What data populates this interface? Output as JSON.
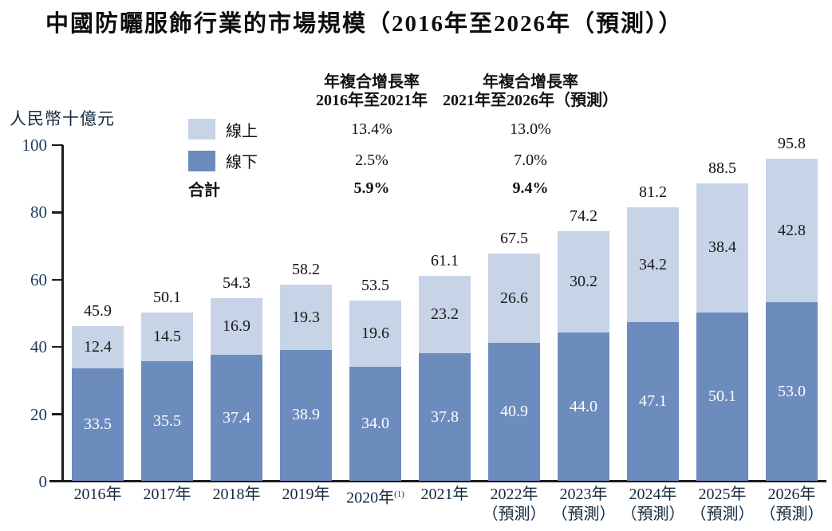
{
  "title": "中國防曬服飾行業的市場規模（2016年至2026年（預測））",
  "chart_data": {
    "type": "bar",
    "subtype": "stacked",
    "unit_label": "人民幣十億元",
    "y_axis": {
      "min": 0,
      "max": 100,
      "ticks": [
        0,
        20,
        40,
        60,
        80,
        100
      ],
      "grid": false
    },
    "categories": [
      {
        "label": "2016年"
      },
      {
        "label": "2017年"
      },
      {
        "label": "2018年"
      },
      {
        "label": "2019年"
      },
      {
        "label": "2020年",
        "sup": "(1)"
      },
      {
        "label": "2021年"
      },
      {
        "label": "2022年",
        "line2": "（預測）"
      },
      {
        "label": "2023年",
        "line2": "（預測）"
      },
      {
        "label": "2024年",
        "line2": "（預測）"
      },
      {
        "label": "2025年",
        "line2": "（預測）"
      },
      {
        "label": "2026年",
        "line2": "（預測）"
      }
    ],
    "series": [
      {
        "name": "線上",
        "key": "online",
        "color": "#C7D4E7",
        "values": [
          12.4,
          14.5,
          16.9,
          19.3,
          19.6,
          23.2,
          26.6,
          30.2,
          34.2,
          38.4,
          42.8
        ]
      },
      {
        "name": "線下",
        "key": "offline",
        "color": "#6D8CBE",
        "values": [
          33.5,
          35.5,
          37.4,
          38.9,
          34.0,
          37.8,
          40.9,
          44.0,
          47.1,
          50.1,
          53.0
        ]
      }
    ],
    "totals": [
      45.9,
      50.1,
      54.3,
      58.2,
      53.5,
      61.1,
      67.5,
      74.2,
      81.2,
      88.5,
      95.8
    ],
    "cagr": {
      "col1_header_line1": "年複合增長率",
      "col1_header_line2": "2016年至2021年",
      "col2_header_line1": "年複合增長率",
      "col2_header_line2": "2021年至2026年（預測）",
      "rows": [
        {
          "label": "線上",
          "col1": "13.4%",
          "col2": "13.0%"
        },
        {
          "label": "線下",
          "col1": "2.5%",
          "col2": "7.0%"
        },
        {
          "label": "合計",
          "col1": "5.9%",
          "col2": "9.4%"
        }
      ],
      "total_label": "合計"
    },
    "colors": {
      "online": "#C7D4E7",
      "offline": "#6D8CBE",
      "axis": "#1c1c1c"
    }
  }
}
